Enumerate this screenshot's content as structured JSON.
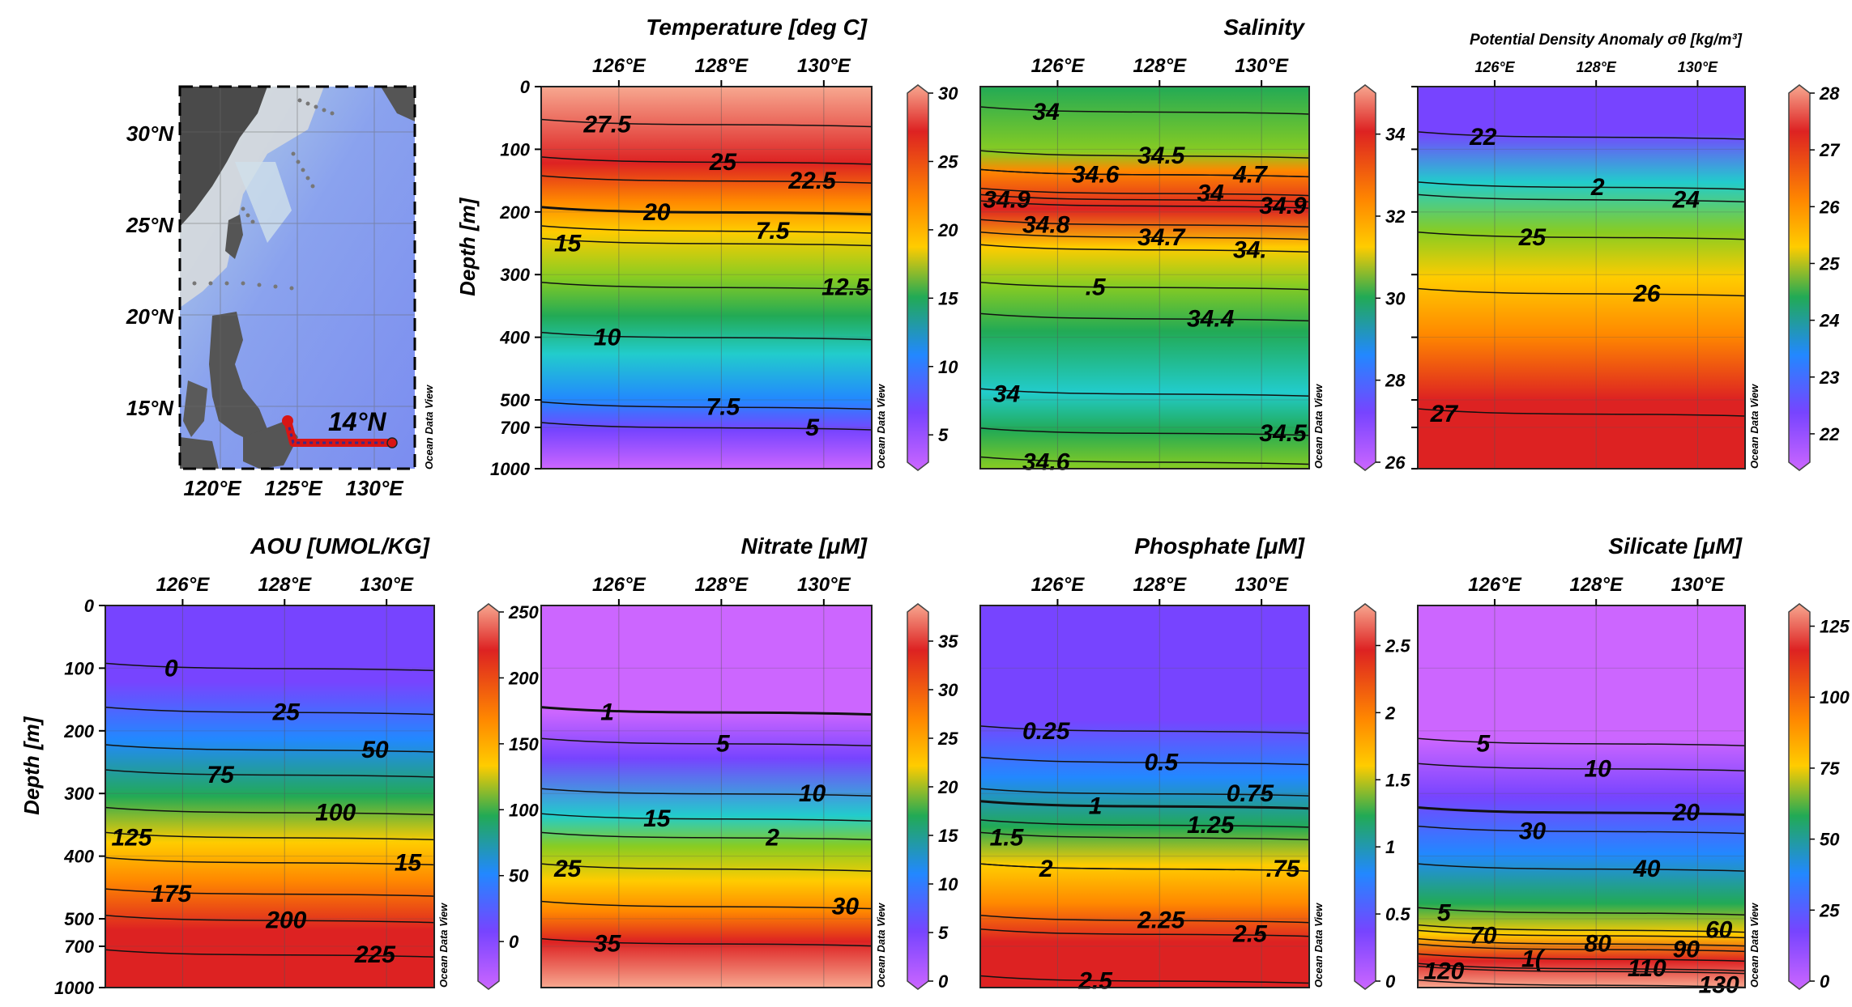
{
  "map": {
    "lat_labels": [
      "30°N",
      "25°N",
      "20°N",
      "15°N"
    ],
    "lon_labels": [
      "120°E",
      "125°E",
      "130°E"
    ],
    "section_label": "14°N",
    "credit": "Ocean Data View"
  },
  "section_axes": {
    "x_ticks": [
      "126°E",
      "128°E",
      "130°E"
    ],
    "depth_ticks": [
      "0",
      "100",
      "200",
      "300",
      "400",
      "500",
      "700",
      "1000"
    ],
    "ylabel": "Depth [m]",
    "credit": "Ocean Data View"
  },
  "colors": {
    "palette": [
      "#cc66ff",
      "#7744ff",
      "#2288ff",
      "#22cccc",
      "#22aa55",
      "#88cc22",
      "#ffcc00",
      "#ff8800",
      "#dd2222",
      "#f7a890"
    ]
  },
  "chart_data": [
    {
      "type": "heatmap",
      "title": "Temperature [deg C]",
      "colorbar": {
        "ticks": [
          "30",
          "25",
          "20",
          "15",
          "10",
          "5"
        ],
        "range": [
          3,
          30
        ]
      },
      "contours": [
        {
          "label": "27.5",
          "depth": 60
        },
        {
          "label": "25",
          "depth": 120
        },
        {
          "label": "22.5",
          "depth": 150
        },
        {
          "label": "20",
          "depth": 200
        },
        {
          "label": "7.5",
          "depth": 230
        },
        {
          "label": "15",
          "depth": 250
        },
        {
          "label": "12.5",
          "depth": 320
        },
        {
          "label": "10",
          "depth": 400
        },
        {
          "label": "7.5",
          "depth": 550
        },
        {
          "label": "5",
          "depth": 700
        }
      ]
    },
    {
      "type": "heatmap",
      "title": "Salinity",
      "colorbar": {
        "ticks": [
          "34",
          "32",
          "30",
          "28",
          "26"
        ],
        "range": [
          26,
          35
        ]
      },
      "contours": [
        {
          "label": "34",
          "depth": 40
        },
        {
          "label": "34.5",
          "depth": 110
        },
        {
          "label": "4.7",
          "depth": 140
        },
        {
          "label": "34.6",
          "depth": 140
        },
        {
          "label": "34",
          "depth": 170
        },
        {
          "label": "34.9",
          "depth": 180
        },
        {
          "label": "34.9",
          "depth": 190
        },
        {
          "label": "34.8",
          "depth": 220
        },
        {
          "label": "34.7",
          "depth": 240
        },
        {
          "label": "34.",
          "depth": 260
        },
        {
          "label": ".5",
          "depth": 320
        },
        {
          "label": "34.4",
          "depth": 370
        },
        {
          "label": "34",
          "depth": 490
        },
        {
          "label": "34.5",
          "depth": 740
        },
        {
          "label": "34.6",
          "depth": 950
        }
      ]
    },
    {
      "type": "heatmap",
      "title": "Potential Density Anomaly σθ [kg/m³]",
      "colorbar": {
        "ticks": [
          "28",
          "27",
          "26",
          "25",
          "24",
          "23",
          "22"
        ],
        "range": [
          21.5,
          28
        ]
      },
      "contours": [
        {
          "label": "22",
          "depth": 80
        },
        {
          "label": "2",
          "depth": 160
        },
        {
          "label": "24",
          "depth": 180
        },
        {
          "label": "25",
          "depth": 240
        },
        {
          "label": "26",
          "depth": 330
        },
        {
          "label": "27",
          "depth": 600
        }
      ]
    },
    {
      "type": "heatmap",
      "title": "AOU [UMOL/KG]",
      "colorbar": {
        "ticks": [
          "250",
          "200",
          "150",
          "100",
          "50",
          "0"
        ],
        "range": [
          -30,
          250
        ]
      },
      "contours": [
        {
          "label": "0",
          "depth": 100
        },
        {
          "label": "25",
          "depth": 170
        },
        {
          "label": "50",
          "depth": 230
        },
        {
          "label": "75",
          "depth": 270
        },
        {
          "label": "100",
          "depth": 330
        },
        {
          "label": "125",
          "depth": 370
        },
        {
          "label": "15",
          "depth": 410
        },
        {
          "label": "175",
          "depth": 460
        },
        {
          "label": "200",
          "depth": 510
        },
        {
          "label": "225",
          "depth": 760
        }
      ]
    },
    {
      "type": "heatmap",
      "title": "Nitrate [μM]",
      "colorbar": {
        "ticks": [
          "35",
          "30",
          "25",
          "20",
          "15",
          "10",
          "5",
          "0"
        ],
        "range": [
          0,
          38
        ]
      },
      "contours": [
        {
          "label": "1",
          "depth": 170
        },
        {
          "label": "5",
          "depth": 220
        },
        {
          "label": "10",
          "depth": 300
        },
        {
          "label": "15",
          "depth": 340
        },
        {
          "label": "2",
          "depth": 370
        },
        {
          "label": "25",
          "depth": 420
        },
        {
          "label": "30",
          "depth": 480
        },
        {
          "label": "35",
          "depth": 680
        }
      ]
    },
    {
      "type": "heatmap",
      "title": "Phosphate [μM]",
      "colorbar": {
        "ticks": [
          "2.5",
          "2",
          "1.5",
          "1",
          "0.5",
          "0"
        ],
        "range": [
          0,
          2.75
        ]
      },
      "contours": [
        {
          "label": "0.25",
          "depth": 200
        },
        {
          "label": "0.5",
          "depth": 250
        },
        {
          "label": "0.75",
          "depth": 300
        },
        {
          "label": "1",
          "depth": 320
        },
        {
          "label": "1.25",
          "depth": 350
        },
        {
          "label": "1.5",
          "depth": 370
        },
        {
          "label": ".75",
          "depth": 420
        },
        {
          "label": "2",
          "depth": 420
        },
        {
          "label": "2.25",
          "depth": 510
        },
        {
          "label": "2.5",
          "depth": 610
        },
        {
          "label": "2.5",
          "depth": 950
        }
      ]
    },
    {
      "type": "heatmap",
      "title": "Silicate [μM]",
      "colorbar": {
        "ticks": [
          "125",
          "100",
          "75",
          "50",
          "25",
          "0"
        ],
        "range": [
          0,
          130
        ]
      },
      "contours": [
        {
          "label": "5",
          "depth": 220
        },
        {
          "label": "10",
          "depth": 260
        },
        {
          "label": "20",
          "depth": 330
        },
        {
          "label": "30",
          "depth": 360
        },
        {
          "label": "40",
          "depth": 420
        },
        {
          "label": "5",
          "depth": 490
        },
        {
          "label": "60",
          "depth": 580
        },
        {
          "label": "70",
          "depth": 620
        },
        {
          "label": "80",
          "depth": 680
        },
        {
          "label": "90",
          "depth": 720
        },
        {
          "label": "1(",
          "depth": 790
        },
        {
          "label": "110",
          "depth": 860
        },
        {
          "label": "120",
          "depth": 880
        },
        {
          "label": "130",
          "depth": 980
        }
      ]
    }
  ]
}
